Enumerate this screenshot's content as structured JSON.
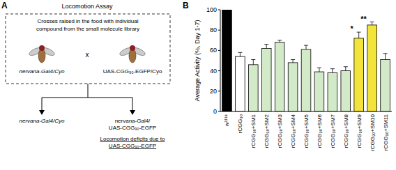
{
  "chart_data": {
    "type": "bar",
    "panel_label": "B",
    "y_label": "Average Activity (%, Day 1-7)",
    "categories": [
      "w¹¹¹⁸",
      "rCGG₉₀",
      "rCGG₉₀+SM1",
      "rCGG₉₀+SM2",
      "rCGG₉₀+SM3",
      "rCGG₉₀+SM4",
      "rCGG₉₀+SM5",
      "rCGG₉₀+SM6",
      "rCGG₉₀+SM7",
      "rCGG₉₀+SM8",
      "rCGG₉₀+SM9",
      "rCGG₉₀+SM10",
      "rCGG₉₀+SM11"
    ],
    "values": [
      100,
      54,
      46,
      62,
      68,
      48,
      61,
      39,
      38,
      40,
      72,
      85,
      51
    ],
    "errors": [
      0,
      4,
      5,
      4,
      2,
      3,
      4,
      4,
      4,
      4,
      6,
      3,
      6
    ],
    "colors": [
      "#000000",
      "#ffffff",
      "#d3eac8",
      "#d3eac8",
      "#d3eac8",
      "#d3eac8",
      "#d3eac8",
      "#d3eac8",
      "#d3eac8",
      "#d3eac8",
      "#f3e43c",
      "#f3e43c",
      "#d3eac8"
    ],
    "significance": [
      null,
      null,
      null,
      null,
      null,
      null,
      null,
      null,
      null,
      null,
      "*",
      "**",
      null
    ],
    "ylim": [
      0,
      100
    ],
    "yticks": [
      0,
      20,
      40,
      60,
      80,
      100
    ],
    "grid": false
  },
  "diagram": {
    "panel_label": "A",
    "title": "Locomotion Assay",
    "box_text": [
      "Crosses raised in the food with individual",
      "compound from the small molecule library"
    ],
    "parent_left": "nervana-Gal4/Cyo",
    "cross_symbol": "x",
    "parent_right": "UAS-CGG₉₀-EGFP/Cyo",
    "offspring_left": "nervana-Gal4/Cyo",
    "offspring_right": [
      "nervana-Gal4/",
      "UAS-CGG₉₀-EGFP"
    ],
    "phenotype": [
      "Locomotion deficits due to",
      "UAS-CGG₉₀-EGFP"
    ]
  }
}
